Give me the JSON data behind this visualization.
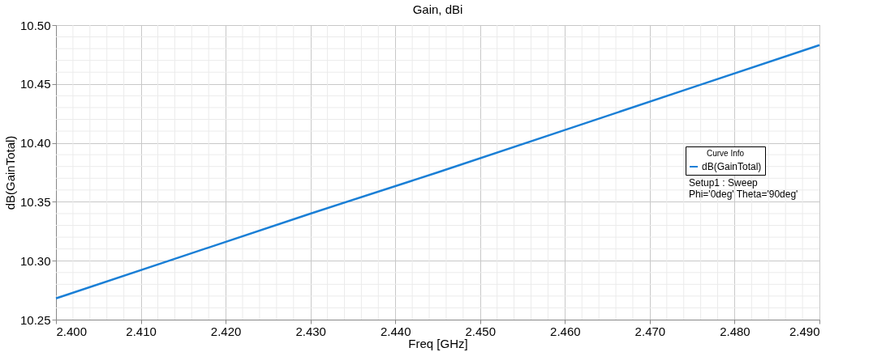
{
  "chart_data": {
    "type": "line",
    "title": "Gain, dBi",
    "xlabel": "Freq [GHz]",
    "ylabel": "dB(GainTotal)",
    "legend_title": "Curve Info",
    "x": [
      2.4,
      2.415,
      2.43,
      2.445,
      2.46,
      2.475,
      2.49
    ],
    "series": [
      {
        "name": "dB(GainTotal)",
        "color": "#1a7fd6",
        "values": [
          10.268,
          10.304,
          10.34,
          10.375,
          10.411,
          10.447,
          10.483
        ]
      }
    ],
    "xlim": [
      2.4,
      2.49
    ],
    "xticks": [
      {
        "value": 2.4,
        "label": "2.400"
      },
      {
        "value": 2.41,
        "label": "2.410"
      },
      {
        "value": 2.42,
        "label": "2.420"
      },
      {
        "value": 2.43,
        "label": "2.430"
      },
      {
        "value": 2.44,
        "label": "2.440"
      },
      {
        "value": 2.45,
        "label": "2.450"
      },
      {
        "value": 2.46,
        "label": "2.460"
      },
      {
        "value": 2.47,
        "label": "2.470"
      },
      {
        "value": 2.48,
        "label": "2.480"
      },
      {
        "value": 2.49,
        "label": "2.490"
      }
    ],
    "ylim": [
      10.25,
      10.5
    ],
    "yticks": [
      10.25,
      {
        "value": 10.3,
        "label": "10.30"
      },
      10.35,
      {
        "value": 10.4,
        "label": "10.40"
      },
      10.45,
      {
        "value": 10.5,
        "label": "10.50"
      }
    ],
    "annotations": [
      "Setup1 : Sweep",
      "Phi='0deg' Theta='90deg'"
    ],
    "grid": true,
    "legend": "right",
    "marker": "none",
    "line_style": "solid"
  }
}
